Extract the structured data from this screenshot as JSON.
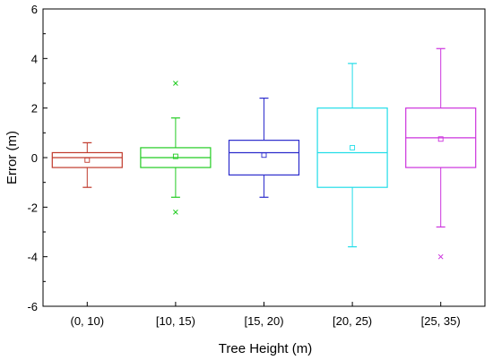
{
  "chart_data": {
    "type": "box",
    "xlabel": "Tree Height (m)",
    "ylabel": "Error (m)",
    "ylim": [
      -6,
      6
    ],
    "yticks": [
      -6,
      -4,
      -2,
      0,
      2,
      4,
      6
    ],
    "yticks_labels": [
      "-6",
      "-4",
      "-2",
      "0",
      "2",
      "4",
      "6"
    ],
    "categories": [
      "(0, 10)",
      "[10, 15)",
      "[15, 20)",
      "[20, 25)",
      "[25, 35)"
    ],
    "boxes": [
      {
        "category": "(0, 10)",
        "color": "#c0392b",
        "whisker_low": -1.2,
        "q1": -0.4,
        "median": 0.0,
        "q3": 0.2,
        "whisker_high": 0.6,
        "mean": -0.1,
        "outliers": []
      },
      {
        "category": "[10, 15)",
        "color": "#22cc22",
        "whisker_low": -1.6,
        "q1": -0.4,
        "median": 0.0,
        "q3": 0.4,
        "whisker_high": 1.6,
        "mean": 0.05,
        "outliers": [
          3.0,
          -2.2
        ]
      },
      {
        "category": "[15, 20)",
        "color": "#2b2bcc",
        "whisker_low": -1.6,
        "q1": -0.7,
        "median": 0.2,
        "q3": 0.7,
        "whisker_high": 2.4,
        "mean": 0.1,
        "outliers": []
      },
      {
        "category": "[20, 25)",
        "color": "#22dde8",
        "whisker_low": -3.6,
        "q1": -1.2,
        "median": 0.2,
        "q3": 2.0,
        "whisker_high": 3.8,
        "mean": 0.4,
        "outliers": []
      },
      {
        "category": "[25, 35)",
        "color": "#cc33dd",
        "whisker_low": -2.8,
        "q1": -0.4,
        "median": 0.8,
        "q3": 2.0,
        "whisker_high": 4.4,
        "mean": 0.75,
        "outliers": [
          -4.0
        ]
      }
    ],
    "grid": false,
    "legend": "none"
  }
}
